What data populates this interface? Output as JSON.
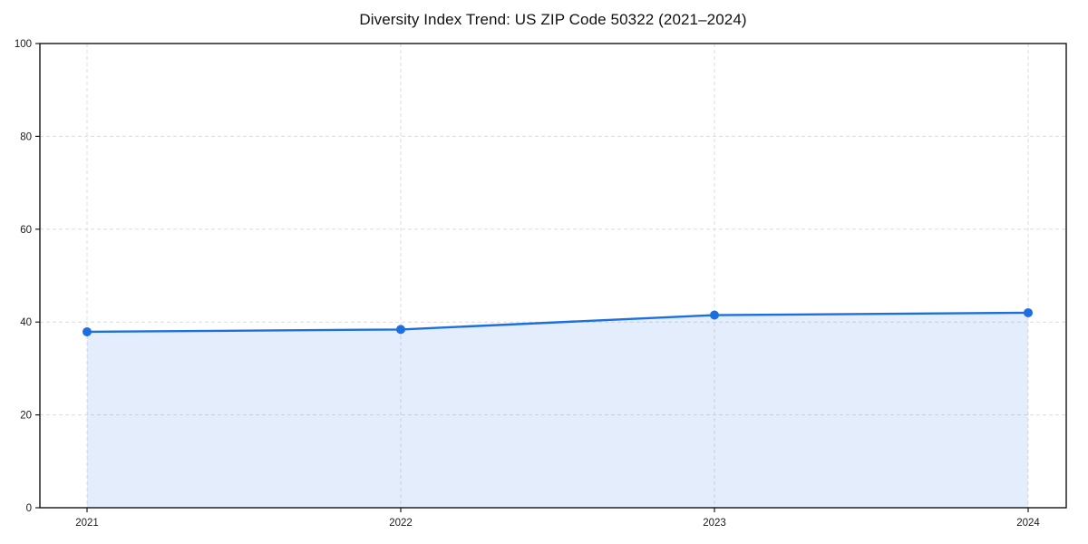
{
  "title": "Diversity Index Trend: US ZIP Code 50322 (2021–2024)",
  "colors": {
    "line": "#1d6fe0",
    "marker": "#1d6fe0",
    "area_fill": "rgba(29,111,224,0.12)",
    "gridline": "#dcdcdc",
    "frame": "#000000",
    "tick": "#1a1a1a",
    "tick_label": "#1a1a1a",
    "title_text": "#111111",
    "background": "#ffffff"
  },
  "chart_data": {
    "type": "line",
    "title": "Diversity Index Trend: US ZIP Code 50322 (2021–2024)",
    "x": [
      2021,
      2022,
      2023,
      2024
    ],
    "xticks": [
      "2021",
      "2022",
      "2023",
      "2024"
    ],
    "series": [
      {
        "name": "Diversity Index",
        "values": [
          37.9,
          38.4,
          41.5,
          42.0
        ]
      }
    ],
    "xlabel": "",
    "ylabel": "",
    "ylim": [
      0,
      100
    ],
    "yticks": [
      0,
      20,
      40,
      60,
      80,
      100
    ],
    "grid": true,
    "grid_style": "dashed",
    "legend": false,
    "area_fill": true,
    "markers": true
  }
}
